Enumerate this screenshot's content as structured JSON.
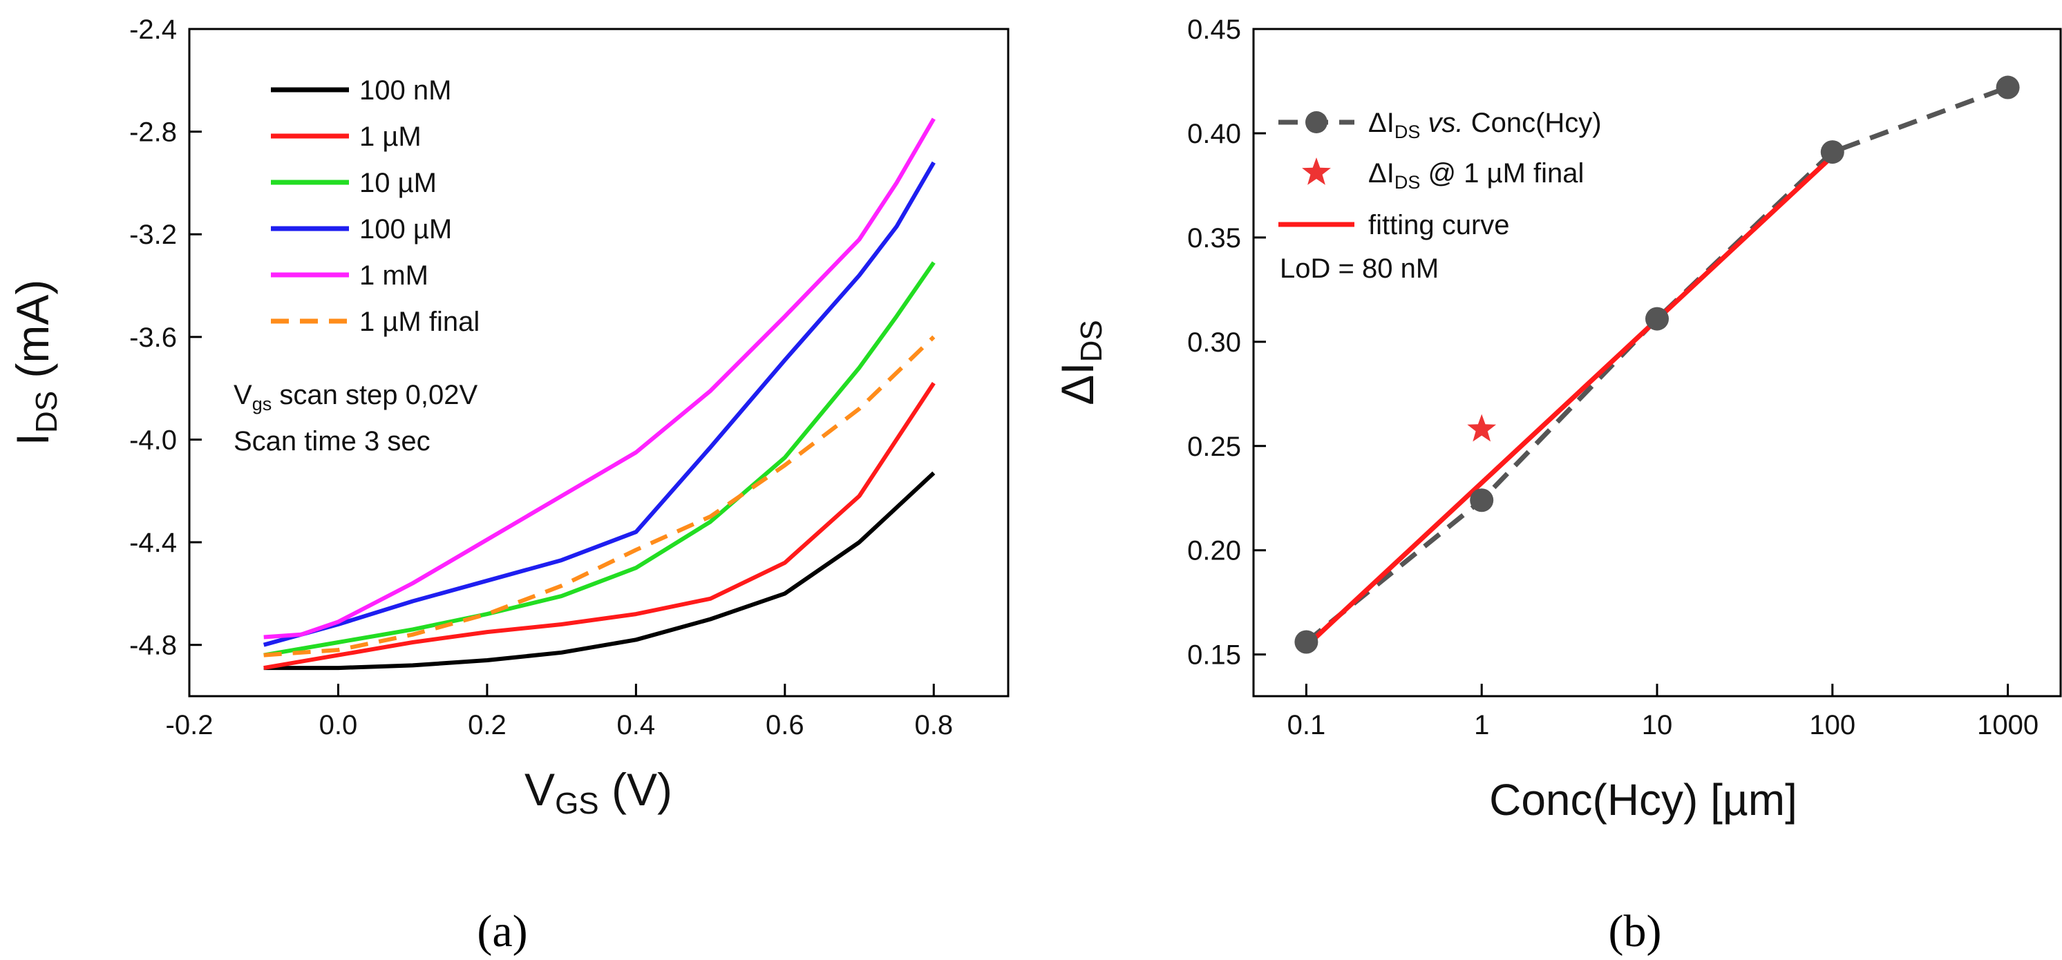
{
  "chart_data": [
    {
      "type": "line",
      "panel": "(a)",
      "xlabel_main": "V",
      "xlabel_sub": "GS",
      "xlabel_tail": " (V)",
      "ylabel_main": "I",
      "ylabel_sub": "DS",
      "ylabel_tail": " (mA)",
      "xlim": [
        -0.2,
        0.9
      ],
      "ylim": [
        -5.0,
        -2.4
      ],
      "xticks": [
        -0.2,
        0.0,
        0.2,
        0.4,
        0.6,
        0.8
      ],
      "xtick_labels": [
        "-0.2",
        "0.0",
        "0.2",
        "0.4",
        "0.6",
        "0.8"
      ],
      "yticks": [
        -4.8,
        -4.4,
        -4.0,
        -3.6,
        -3.2,
        -2.8,
        -2.4
      ],
      "ytick_labels": [
        "-4.8",
        "-4.4",
        "-4.0",
        "-3.6",
        "-3.2",
        "-2.8",
        "-2.4"
      ],
      "annotation_line1_main": "V",
      "annotation_line1_sub": "gs",
      "annotation_line1_tail": " scan step 0,02V",
      "annotation_line2": "Scan time 3 sec",
      "series": [
        {
          "name": "100 nM",
          "color": "#000000",
          "dash": false,
          "x": [
            -0.1,
            0.0,
            0.1,
            0.2,
            0.3,
            0.4,
            0.5,
            0.6,
            0.7,
            0.8
          ],
          "y": [
            -4.89,
            -4.89,
            -4.88,
            -4.86,
            -4.83,
            -4.78,
            -4.7,
            -4.6,
            -4.4,
            -4.13
          ]
        },
        {
          "name": "1 µM",
          "color": "#ff1a1a",
          "dash": false,
          "x": [
            -0.1,
            0.0,
            0.1,
            0.2,
            0.3,
            0.4,
            0.5,
            0.6,
            0.7,
            0.75,
            0.8
          ],
          "y": [
            -4.89,
            -4.84,
            -4.79,
            -4.75,
            -4.72,
            -4.68,
            -4.62,
            -4.48,
            -4.22,
            -4.0,
            -3.78
          ]
        },
        {
          "name": "10 µM",
          "color": "#22dd22",
          "dash": false,
          "x": [
            -0.1,
            0.0,
            0.1,
            0.2,
            0.3,
            0.4,
            0.5,
            0.6,
            0.7,
            0.75,
            0.8
          ],
          "y": [
            -4.84,
            -4.79,
            -4.74,
            -4.68,
            -4.61,
            -4.5,
            -4.32,
            -4.07,
            -3.72,
            -3.52,
            -3.31
          ]
        },
        {
          "name": "100 µM",
          "color": "#1e1ef0",
          "dash": false,
          "x": [
            -0.1,
            0.0,
            0.1,
            0.2,
            0.3,
            0.4,
            0.5,
            0.6,
            0.7,
            0.75,
            0.8
          ],
          "y": [
            -4.8,
            -4.72,
            -4.63,
            -4.55,
            -4.47,
            -4.36,
            -4.03,
            -3.69,
            -3.36,
            -3.17,
            -2.92
          ]
        },
        {
          "name": "1 mM",
          "color": "#ff22ff",
          "dash": false,
          "x": [
            -0.1,
            -0.05,
            0.0,
            0.1,
            0.2,
            0.3,
            0.4,
            0.5,
            0.6,
            0.7,
            0.75,
            0.8
          ],
          "y": [
            -4.77,
            -4.76,
            -4.71,
            -4.56,
            -4.39,
            -4.22,
            -4.05,
            -3.81,
            -3.52,
            -3.22,
            -3.0,
            -2.75
          ]
        },
        {
          "name": "1 µM final",
          "color": "#ff8c1a",
          "dash": true,
          "x": [
            -0.1,
            0.0,
            0.1,
            0.2,
            0.3,
            0.4,
            0.5,
            0.6,
            0.7,
            0.8
          ],
          "y": [
            -4.84,
            -4.82,
            -4.76,
            -4.68,
            -4.57,
            -4.43,
            -4.3,
            -4.1,
            -3.88,
            -3.6
          ]
        }
      ]
    },
    {
      "type": "scatter",
      "panel": "(b)",
      "xscale": "log",
      "xlabel": "Conc(Hcy) [µm]",
      "ylabel_main": "ΔI",
      "ylabel_sub": "DS",
      "xlim": [
        0.05,
        2000
      ],
      "ylim": [
        0.13,
        0.45
      ],
      "xticks": [
        0.1,
        1,
        10,
        100,
        1000
      ],
      "xtick_labels": [
        "0.1",
        "1",
        "10",
        "100",
        "1000"
      ],
      "yticks": [
        0.15,
        0.2,
        0.25,
        0.3,
        0.35,
        0.4,
        0.45
      ],
      "ytick_labels": [
        "0.15",
        "0.20",
        "0.25",
        "0.30",
        "0.35",
        "0.40",
        "0.45"
      ],
      "legend": {
        "item1_main": "ΔI",
        "item1_sub": "DS",
        "item1_vs": " vs.",
        "item1_tail": " Conc(Hcy)",
        "item2_main": "ΔI",
        "item2_sub": "DS",
        "item2_tail": " @ 1 µM final",
        "item3": "fitting curve",
        "note": "LoD = 80 nM"
      },
      "series": [
        {
          "name": "ΔI_DS vs. Conc(Hcy)",
          "color": "#555555",
          "x": [
            0.1,
            1,
            10,
            100,
            1000
          ],
          "y": [
            0.156,
            0.224,
            0.311,
            0.391,
            0.422
          ]
        },
        {
          "name": "ΔI_DS @ 1 µM final",
          "color": "#ee3333",
          "x": [
            1
          ],
          "y": [
            0.258
          ]
        },
        {
          "name": "fitting curve",
          "color": "#ff1a1a",
          "x": [
            0.1,
            100
          ],
          "y": [
            0.154,
            0.389
          ]
        }
      ]
    }
  ],
  "captions": {
    "a": "(a)",
    "b": "(b)"
  }
}
